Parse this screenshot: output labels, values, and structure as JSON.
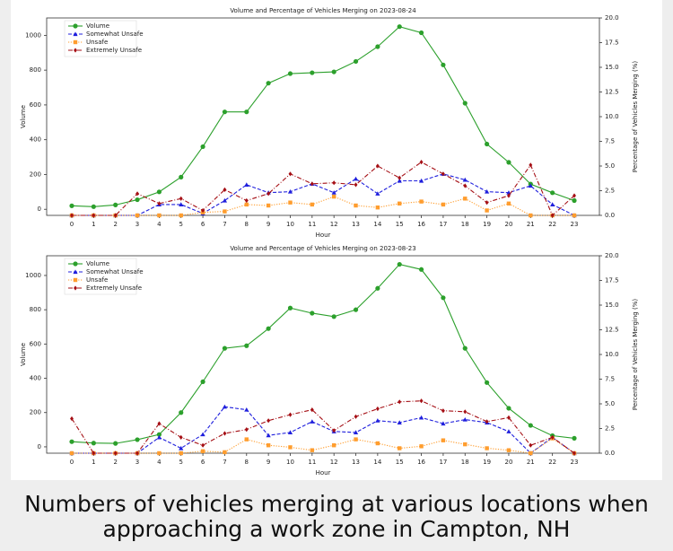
{
  "chart_data": [
    {
      "type": "line",
      "title": "Volume and Percentage of Vehicles Merging on 2023-08-24",
      "xlabel": "Hour",
      "ylabel": "Volume",
      "y2label": "Percentage of Vehicles Merging (%)",
      "categories": [
        "0",
        "1",
        "2",
        "3",
        "4",
        "5",
        "6",
        "7",
        "8",
        "9",
        "10",
        "11",
        "12",
        "13",
        "14",
        "15",
        "16",
        "17",
        "18",
        "19",
        "20",
        "21",
        "22",
        "23"
      ],
      "ylim": [
        -35,
        1100
      ],
      "yticks": [
        0,
        200,
        400,
        600,
        800,
        1000
      ],
      "y2lim": [
        0,
        20
      ],
      "y2ticks": [
        {
          "value": 0,
          "label": "0.0"
        },
        2.5,
        {
          "value": 5,
          "label": "5.0"
        },
        7.5,
        {
          "value": 10,
          "label": "10.0"
        },
        12.5,
        {
          "value": 15,
          "label": "15.0"
        },
        17.5,
        {
          "value": 20,
          "label": "20.0"
        }
      ],
      "legend": "upper left",
      "grid": false,
      "series": [
        {
          "name": "Volume",
          "color": "#2ca02c",
          "linestyle": "solid",
          "marker": "circle",
          "values": [
            20,
            15,
            25,
            55,
            100,
            185,
            360,
            560,
            560,
            725,
            780,
            785,
            790,
            850,
            935,
            1050,
            1015,
            830,
            610,
            375,
            270,
            145,
            95,
            50
          ]
        },
        {
          "name": "Somewhat Unsafe",
          "color": "#1f1fdd",
          "linestyle": "dashed",
          "marker": "triangle",
          "axis": "y2",
          "values": [
            0,
            0,
            0,
            0,
            1.1,
            1.1,
            0.2,
            1.5,
            3.1,
            2.3,
            2.4,
            3.2,
            2.3,
            3.7,
            2.2,
            3.5,
            3.5,
            4.2,
            3.6,
            2.4,
            2.3,
            3.0,
            1.1,
            0
          ]
        },
        {
          "name": "Unsafe",
          "color": "#ff9d2e",
          "linestyle": "dotted",
          "marker": "square",
          "axis": "y2",
          "values": [
            0,
            0,
            0,
            0,
            0,
            0,
            0.3,
            0.4,
            1.1,
            1.0,
            1.3,
            1.1,
            1.9,
            1.0,
            0.8,
            1.2,
            1.4,
            1.1,
            1.7,
            0.5,
            1.2,
            0,
            0,
            0
          ]
        },
        {
          "name": "Extremely Unsafe",
          "color": "#a50f15",
          "linestyle": "dashdot",
          "marker": "diamond",
          "axis": "y2",
          "values": [
            0,
            0,
            0,
            2.2,
            1.2,
            1.7,
            0.5,
            2.6,
            1.5,
            2.2,
            4.2,
            3.2,
            3.3,
            3.1,
            5.0,
            3.8,
            5.4,
            4.2,
            3.0,
            1.3,
            2.0,
            5.1,
            0,
            2.0
          ]
        }
      ]
    },
    {
      "type": "line",
      "title": "Volume and Percentage of Vehicles Merging on 2023-08-23",
      "xlabel": "Hour",
      "ylabel": "Volume",
      "y2label": "Percentage of Vehicles Merging (%)",
      "categories": [
        "0",
        "1",
        "2",
        "3",
        "4",
        "5",
        "6",
        "7",
        "8",
        "9",
        "10",
        "11",
        "12",
        "13",
        "14",
        "15",
        "16",
        "17",
        "18",
        "19",
        "20",
        "21",
        "22",
        "23"
      ],
      "ylim": [
        -37,
        1115
      ],
      "yticks": [
        0,
        200,
        400,
        600,
        800,
        1000
      ],
      "y2lim": [
        0,
        20
      ],
      "y2ticks": [
        {
          "value": 0,
          "label": "0.0"
        },
        2.5,
        {
          "value": 5,
          "label": "5.0"
        },
        7.5,
        {
          "value": 10,
          "label": "10.0"
        },
        12.5,
        {
          "value": 15,
          "label": "15.0"
        },
        17.5,
        {
          "value": 20,
          "label": "20.0"
        }
      ],
      "legend": "upper left",
      "grid": false,
      "series": [
        {
          "name": "Volume",
          "color": "#2ca02c",
          "linestyle": "solid",
          "marker": "circle",
          "values": [
            30,
            22,
            20,
            42,
            72,
            200,
            380,
            575,
            590,
            690,
            810,
            780,
            760,
            800,
            925,
            1065,
            1035,
            870,
            575,
            375,
            225,
            125,
            65,
            50
          ]
        },
        {
          "name": "Somewhat Unsafe",
          "color": "#1f1fdd",
          "linestyle": "dashed",
          "marker": "triangle",
          "axis": "y2",
          "values": [
            0,
            0,
            0,
            0,
            1.6,
            0.5,
            1.9,
            4.7,
            4.4,
            1.8,
            2.1,
            3.2,
            2.2,
            2.1,
            3.3,
            3.1,
            3.6,
            3.0,
            3.4,
            3.1,
            2.2,
            0,
            1.6,
            0
          ]
        },
        {
          "name": "Unsafe",
          "color": "#ff9d2e",
          "linestyle": "dotted",
          "marker": "square",
          "axis": "y2",
          "values": [
            0,
            0,
            0,
            0,
            0,
            0,
            0.2,
            0.1,
            1.4,
            0.8,
            0.6,
            0.3,
            0.8,
            1.4,
            1.0,
            0.5,
            0.7,
            1.3,
            0.9,
            0.5,
            0.3,
            0,
            1.5,
            0
          ]
        },
        {
          "name": "Extremely Unsafe",
          "color": "#a50f15",
          "linestyle": "dashdot",
          "marker": "diamond",
          "axis": "y2",
          "values": [
            3.5,
            0,
            0,
            0,
            3.0,
            1.6,
            0.8,
            2.0,
            2.4,
            3.3,
            3.9,
            4.4,
            2.3,
            3.7,
            4.5,
            5.2,
            5.3,
            4.3,
            4.2,
            3.2,
            3.6,
            0.8,
            1.6,
            0
          ]
        }
      ]
    }
  ],
  "caption": "Numbers of vehicles merging at various locations when approaching a work zone in Campton, NH"
}
